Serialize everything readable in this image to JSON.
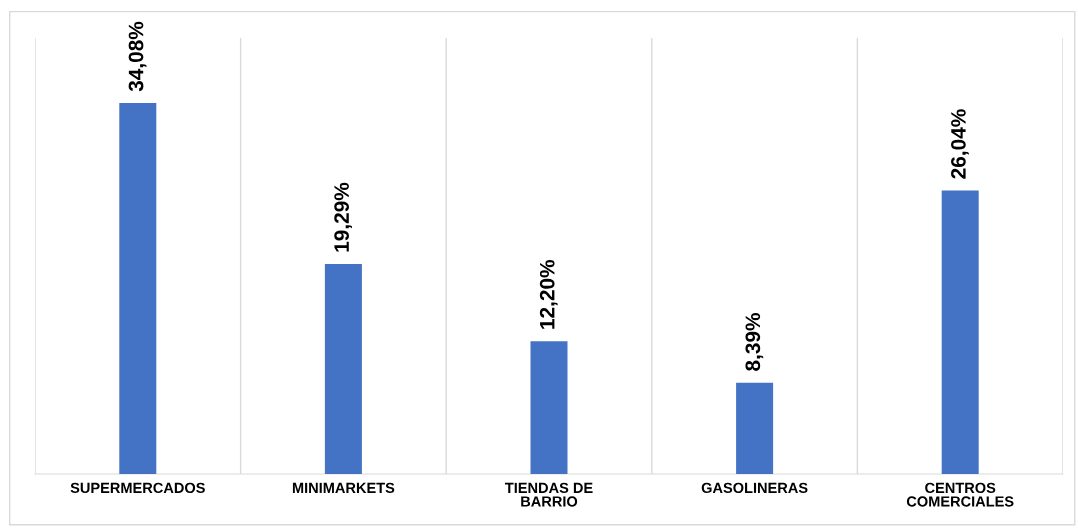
{
  "chart_data": {
    "type": "bar",
    "categories": [
      "SUPERMERCADOS",
      "MINIMARKETS",
      "TIENDAS DE\nBARRIO",
      "GASOLINERAS",
      "CENTROS\nCOMERCIALES"
    ],
    "values": [
      34.08,
      19.29,
      12.2,
      8.39,
      26.04
    ],
    "value_labels": [
      "34,08%",
      "19,29%",
      "12,20%",
      "8,39%",
      "26,04%"
    ],
    "color": "#4472c4",
    "grid": "x"
  }
}
